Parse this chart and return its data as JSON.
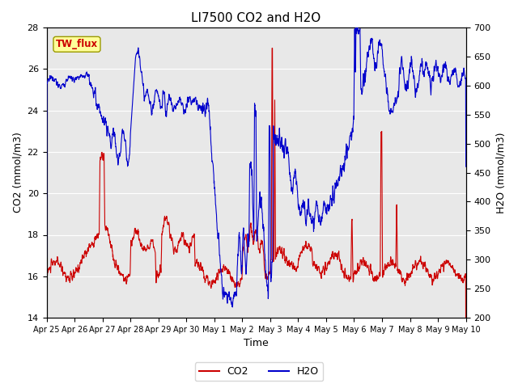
{
  "title": "LI7500 CO2 and H2O",
  "xlabel": "Time",
  "ylabel_left": "CO2 (mmol/m3)",
  "ylabel_right": "H2O (mmol/m3)",
  "ylim_left": [
    14,
    28
  ],
  "ylim_right": [
    200,
    700
  ],
  "yticks_left": [
    14,
    16,
    18,
    20,
    22,
    24,
    26,
    28
  ],
  "yticks_right": [
    200,
    250,
    300,
    350,
    400,
    450,
    500,
    550,
    600,
    650,
    700
  ],
  "xtick_labels": [
    "Apr 25",
    "Apr 26",
    "Apr 27",
    "Apr 28",
    "Apr 29",
    "Apr 30",
    "May 1",
    "May 2",
    "May 3",
    "May 4",
    "May 5",
    "May 6",
    "May 7",
    "May 8",
    "May 9",
    "May 10"
  ],
  "co2_color": "#cc0000",
  "h2o_color": "#0000cc",
  "bg_color": "#ffffff",
  "plot_bg_color": "#e8e8e8",
  "grid_color": "#ffffff",
  "legend_co2": "CO2",
  "legend_h2o": "H2O",
  "text_box_label": "TW_flux",
  "text_box_color": "#ffff99",
  "text_box_border": "#999900",
  "text_box_text_color": "#cc0000",
  "n_days": 15,
  "n_pts": 2160
}
